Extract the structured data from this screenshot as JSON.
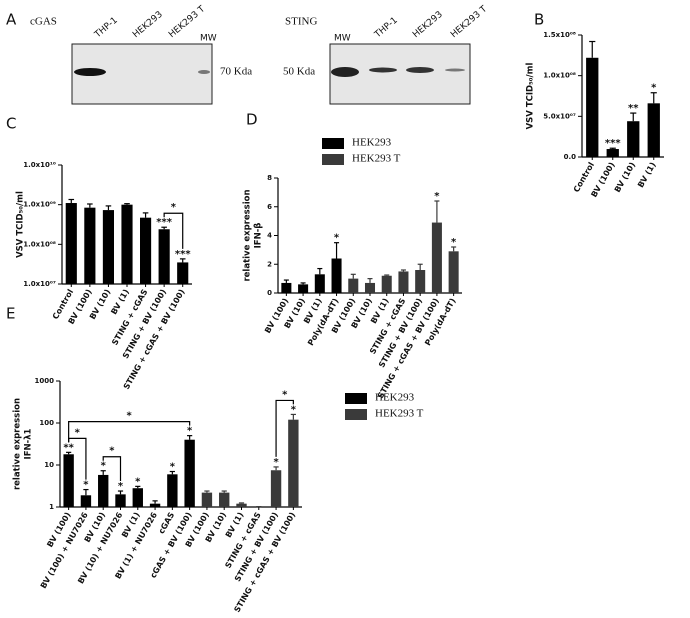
{
  "panel_a": {
    "panel": "A",
    "left": {
      "protein": "cGAS",
      "lanes": [
        "THP-1",
        "HEK293",
        "HEK293 T"
      ],
      "marker": "MW",
      "size": "70 Kda"
    },
    "right": {
      "protein": "STING",
      "marker": "MW",
      "lanes": [
        "THP-1",
        "HEK293",
        "HEK293 T"
      ],
      "size": "50 Kda"
    }
  },
  "chart_data": [
    {
      "type": "bar",
      "panel": "B",
      "y_label": [
        "VSV TCID₅₀/ml"
      ],
      "categories": [
        "Control",
        "BV (100)",
        "BV (10)",
        "BV (1)"
      ],
      "values": [
        122000000,
        9800000,
        44000000,
        66000000
      ],
      "errors": [
        20000000,
        1000000,
        10000000,
        13000000
      ],
      "significance": [
        null,
        "***",
        "**",
        "*"
      ],
      "color": "#000000",
      "ylim": [
        0,
        150000000
      ],
      "yticks": [
        {
          "value": 0,
          "label": "0.0"
        },
        {
          "value": 50000000,
          "label": "5.0x10⁰⁷"
        },
        {
          "value": 100000000,
          "label": "1.0x10⁰⁸"
        },
        {
          "value": 150000000,
          "label": "1.5x10⁰⁸"
        }
      ]
    },
    {
      "type": "bar",
      "panel": "C",
      "y_label": [
        "VSV TCID₅₀/ml"
      ],
      "log_scale": true,
      "categories": [
        "Control",
        "BV (100)",
        "BV (10)",
        "BV (1)",
        "STING + cGAS",
        "STING + BV (100)",
        "STING + cGAS + BV (100)"
      ],
      "values": [
        1100000000,
        840000000,
        730000000,
        1000000000,
        470000000,
        240000000,
        35000000
      ],
      "errors": [
        250000000,
        200000000,
        200000000,
        60000000,
        150000000,
        30000000,
        8000000
      ],
      "significance": [
        null,
        null,
        null,
        null,
        null,
        "***",
        "***"
      ],
      "color": "#000000",
      "brackets": [
        {
          "categories": [
            5,
            6
          ],
          "label": "*"
        }
      ],
      "ylim": [
        10000000,
        10000000000
      ],
      "yticks": [
        {
          "value": 10000000,
          "label": "1.0x10⁰⁷"
        },
        {
          "value": 100000000,
          "label": "1.0x10⁰⁸"
        },
        {
          "value": 1000000000,
          "label": "1.0x10⁰⁹"
        },
        {
          "value": 10000000000,
          "label": "1.0x10¹⁰"
        }
      ]
    },
    {
      "type": "bar",
      "panel": "D",
      "y_label": [
        "relative expression",
        "IFN-β"
      ],
      "categories": [
        "BV (100)",
        "BV (10)",
        "BV (1)",
        "Poly(dA-dT)",
        "BV (100)",
        "BV (10)",
        "BV (1)",
        "STING + cGAS",
        "STING + BV (100)",
        "STING + cGAS + BV (100)",
        "Poly(dA-dT)"
      ],
      "series": [
        {
          "name": "HEK293",
          "color": "#000000",
          "values": [
            0.7,
            0.6,
            1.3,
            2.4,
            null,
            null,
            null,
            null,
            null,
            null,
            null
          ],
          "errors": [
            0.2,
            0.1,
            0.4,
            1.1,
            null,
            null,
            null,
            null,
            null,
            null,
            null
          ],
          "significance": [
            null,
            null,
            null,
            "*",
            null,
            null,
            null,
            null,
            null,
            null,
            null
          ]
        },
        {
          "name": "HEK293 T",
          "color": "#3a3a3a",
          "values": [
            null,
            null,
            null,
            null,
            1.0,
            0.7,
            1.2,
            1.5,
            1.6,
            4.9,
            2.9
          ],
          "errors": [
            null,
            null,
            null,
            null,
            0.3,
            0.3,
            0.05,
            0.1,
            0.4,
            1.5,
            0.3
          ],
          "significance": [
            null,
            null,
            null,
            null,
            null,
            null,
            null,
            null,
            null,
            "*",
            "*"
          ]
        }
      ],
      "ylim": [
        0,
        8
      ],
      "yticks": [
        0,
        2,
        4,
        6,
        8
      ]
    },
    {
      "type": "bar",
      "panel": "E",
      "y_label": [
        "relative expression",
        "IFN-λ1"
      ],
      "log_scale": true,
      "categories": [
        "BV (100)",
        "BV (100) + NU7026",
        "BV (10)",
        "BV (10) + NU7026",
        "BV (1)",
        "BV (1) + NU7026",
        "cGAS",
        "cGAS + BV (100)",
        "BV (100)",
        "BV (10)",
        "BV (1)",
        "STING + cGAS",
        "STING + BV (100)",
        "STING + cGAS + BV (100)"
      ],
      "series": [
        {
          "name": "HEK293",
          "color": "#000000",
          "values": [
            18,
            1.9,
            5.8,
            2.0,
            2.8,
            1.2,
            6,
            40,
            null,
            null,
            null,
            null,
            null,
            null
          ],
          "errors": [
            2,
            0.7,
            1.5,
            0.4,
            0.3,
            0.2,
            1,
            10,
            null,
            null,
            null,
            null,
            null,
            null
          ],
          "significance": [
            "**",
            "*",
            "*",
            "*",
            "*",
            null,
            "*",
            "*",
            null,
            null,
            null,
            null,
            null,
            null
          ]
        },
        {
          "name": "HEK293 T",
          "color": "#3a3a3a",
          "values": [
            null,
            null,
            null,
            null,
            null,
            null,
            null,
            null,
            2.2,
            2.2,
            1.2,
            1.0,
            7.5,
            120
          ],
          "errors": [
            null,
            null,
            null,
            null,
            null,
            null,
            null,
            null,
            0.2,
            0.2,
            0.05,
            0.02,
            1.5,
            40
          ],
          "significance": [
            null,
            null,
            null,
            null,
            null,
            null,
            null,
            null,
            null,
            null,
            null,
            null,
            "*",
            "*"
          ]
        }
      ],
      "brackets": [
        {
          "categories": [
            0,
            7
          ],
          "label": "*"
        },
        {
          "categories": [
            0,
            1
          ],
          "label": "*"
        },
        {
          "categories": [
            2,
            3
          ],
          "label": "*"
        },
        {
          "categories": [
            12,
            13
          ],
          "label": "*"
        }
      ],
      "ylim": [
        1,
        1000
      ],
      "yticks": [
        1,
        10,
        100,
        1000
      ]
    }
  ]
}
